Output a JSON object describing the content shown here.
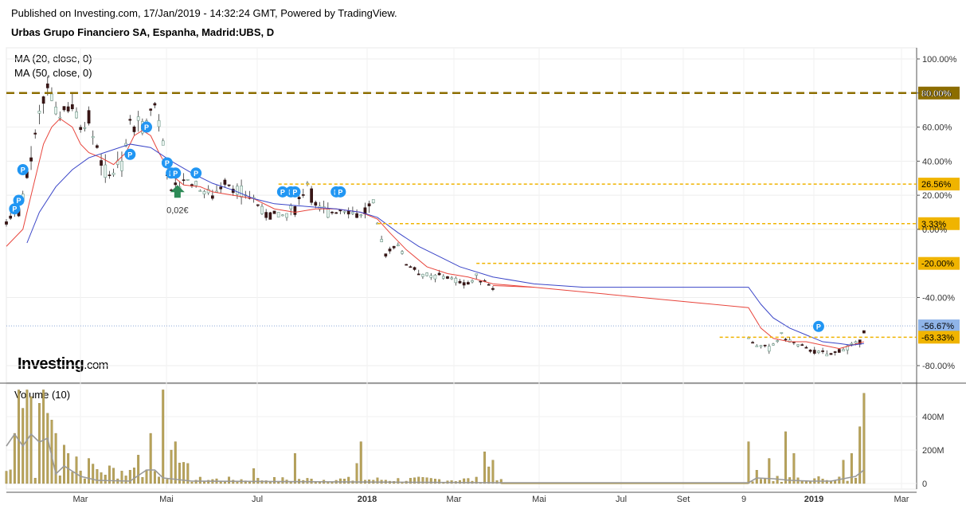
{
  "header": {
    "published": "Published on Investing.com, 17/Jan/2019 - 14:32:24 GMT, Powered by TradingView.",
    "symbol": "Urbas Grupo Financiero SA, Espanha, Madrid:UBS, D"
  },
  "indicators": {
    "ma20": "MA (20, close, 0)",
    "ma50": "MA (50, close, 0)",
    "volume": "Volume (10)"
  },
  "logo": {
    "brand": "Investing",
    "suffix": ".com"
  },
  "annotation": {
    "label": "0,02€"
  },
  "colors": {
    "ma20": "#e8453c",
    "ma50": "#3b46c8",
    "volume_bar": "#b8a35a",
    "volume_ma": "#999999",
    "level_dark": "#8c6d00",
    "level_gold": "#f0b400",
    "last_price": "#8fb4e8",
    "marker": "#2196f3",
    "arrow": "#2e8b57"
  },
  "chart_data": {
    "type": "line",
    "price_axis": {
      "ticks": [
        "100.00%",
        "80.00%",
        "60.00%",
        "40.00%",
        "20.00%",
        "0.00%",
        "-40.00%",
        "-80.00%"
      ],
      "tick_values": [
        100,
        80,
        60,
        40,
        20,
        0,
        -40,
        -80
      ],
      "range": [
        -85,
        104
      ]
    },
    "time_axis": {
      "labels": [
        "Mar",
        "Mai",
        "Jul",
        "2018",
        "Mar",
        "Mai",
        "Jul",
        "Set",
        "9",
        "2019",
        "Mar"
      ],
      "bold": [
        "2018",
        "2019"
      ]
    },
    "levels": [
      {
        "label": "80.00%",
        "value": 80,
        "style": "dark"
      },
      {
        "label": "26.56%",
        "value": 26.56,
        "style": "gold"
      },
      {
        "label": "3.33%",
        "value": 3.33,
        "style": "gold"
      },
      {
        "label": "-20.00%",
        "value": -20,
        "style": "gold"
      },
      {
        "label": "-56.67%",
        "value": -56.67,
        "style": "last"
      },
      {
        "label": "-63.33%",
        "value": -63.33,
        "style": "gold"
      }
    ],
    "price_path": [
      [
        0,
        5
      ],
      [
        3,
        10
      ],
      [
        6,
        40
      ],
      [
        8,
        65
      ],
      [
        10,
        84
      ],
      [
        12,
        68
      ],
      [
        16,
        72
      ],
      [
        18,
        60
      ],
      [
        20,
        66
      ],
      [
        24,
        32
      ],
      [
        28,
        38
      ],
      [
        30,
        62
      ],
      [
        33,
        60
      ],
      [
        36,
        74
      ],
      [
        38,
        52
      ],
      [
        40,
        20
      ],
      [
        43,
        30
      ],
      [
        47,
        24
      ],
      [
        50,
        20
      ],
      [
        53,
        28
      ],
      [
        57,
        22
      ],
      [
        60,
        18
      ],
      [
        63,
        8
      ],
      [
        67,
        8
      ],
      [
        70,
        12
      ],
      [
        73,
        28
      ],
      [
        75,
        12
      ],
      [
        78,
        10
      ],
      [
        82,
        12
      ],
      [
        86,
        8
      ],
      [
        89,
        14
      ],
      [
        90,
        2
      ],
      [
        92,
        -15
      ],
      [
        95,
        -8
      ],
      [
        97,
        -20
      ],
      [
        100,
        -25
      ],
      [
        103,
        -28
      ],
      [
        106,
        -27
      ],
      [
        109,
        -30
      ],
      [
        112,
        -32
      ],
      [
        114,
        -28
      ],
      [
        116,
        -30
      ],
      [
        118,
        -34
      ],
      [
        180,
        -64
      ],
      [
        182,
        -68
      ],
      [
        185,
        -70
      ],
      [
        188,
        -62
      ],
      [
        191,
        -67
      ],
      [
        194,
        -70
      ],
      [
        197,
        -72
      ],
      [
        200,
        -74
      ],
      [
        203,
        -70
      ],
      [
        205,
        -68
      ],
      [
        207,
        -66
      ],
      [
        208,
        -60
      ]
    ],
    "ma20_path": [
      [
        0,
        -10
      ],
      [
        4,
        0
      ],
      [
        7,
        30
      ],
      [
        9,
        50
      ],
      [
        11,
        60
      ],
      [
        13,
        65
      ],
      [
        16,
        60
      ],
      [
        18,
        50
      ],
      [
        20,
        45
      ],
      [
        23,
        42
      ],
      [
        26,
        38
      ],
      [
        29,
        45
      ],
      [
        31,
        55
      ],
      [
        33,
        58
      ],
      [
        35,
        55
      ],
      [
        37,
        45
      ],
      [
        40,
        32
      ],
      [
        43,
        26
      ],
      [
        47,
        25
      ],
      [
        50,
        22
      ],
      [
        55,
        20
      ],
      [
        60,
        18
      ],
      [
        65,
        12
      ],
      [
        70,
        10
      ],
      [
        75,
        12
      ],
      [
        80,
        12
      ],
      [
        86,
        10
      ],
      [
        90,
        6
      ],
      [
        93,
        -2
      ],
      [
        97,
        -12
      ],
      [
        102,
        -22
      ],
      [
        107,
        -26
      ],
      [
        112,
        -28
      ],
      [
        118,
        -32
      ],
      [
        128,
        -34
      ],
      [
        180,
        -46
      ],
      [
        183,
        -58
      ],
      [
        186,
        -64
      ],
      [
        190,
        -66
      ],
      [
        194,
        -66
      ],
      [
        198,
        -68
      ],
      [
        202,
        -70
      ],
      [
        205,
        -68
      ],
      [
        208,
        -66
      ]
    ],
    "ma50_path": [
      [
        5,
        -8
      ],
      [
        8,
        10
      ],
      [
        12,
        25
      ],
      [
        16,
        35
      ],
      [
        20,
        42
      ],
      [
        25,
        46
      ],
      [
        30,
        50
      ],
      [
        35,
        48
      ],
      [
        40,
        40
      ],
      [
        45,
        33
      ],
      [
        50,
        27
      ],
      [
        55,
        23
      ],
      [
        60,
        18
      ],
      [
        65,
        15
      ],
      [
        70,
        14
      ],
      [
        75,
        13
      ],
      [
        80,
        12
      ],
      [
        86,
        10
      ],
      [
        90,
        7
      ],
      [
        95,
        -2
      ],
      [
        100,
        -10
      ],
      [
        105,
        -16
      ],
      [
        110,
        -22
      ],
      [
        118,
        -28
      ],
      [
        128,
        -32
      ],
      [
        140,
        -34
      ],
      [
        180,
        -34
      ],
      [
        183,
        -44
      ],
      [
        186,
        -52
      ],
      [
        190,
        -58
      ],
      [
        194,
        -62
      ],
      [
        198,
        -66
      ],
      [
        202,
        -67
      ],
      [
        205,
        -68
      ],
      [
        208,
        -67
      ]
    ],
    "volume": {
      "ticks": [
        "400M",
        "200M",
        "0"
      ],
      "tick_values": [
        400,
        200,
        0
      ],
      "range": [
        0,
        520
      ],
      "unit": "M"
    }
  }
}
